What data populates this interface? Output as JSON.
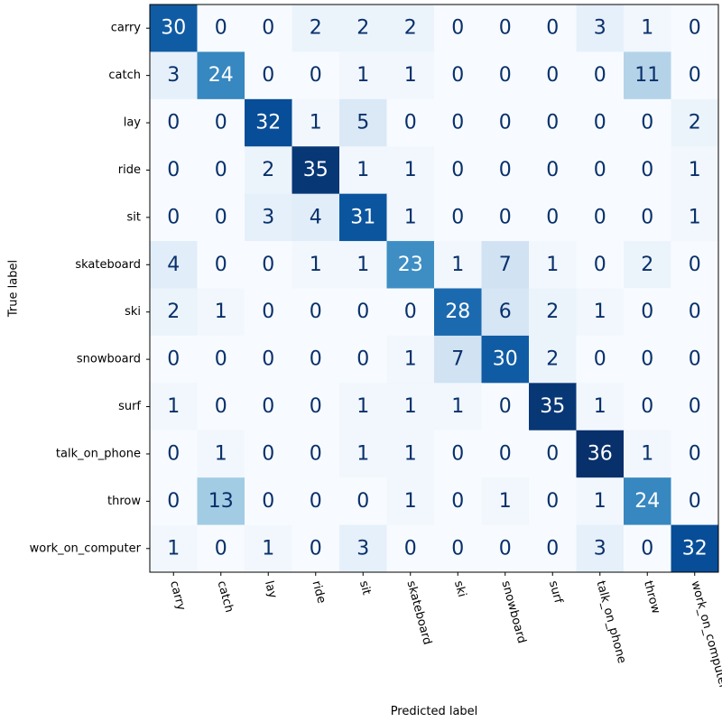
{
  "chart_data": {
    "type": "heatmap",
    "title": "",
    "xlabel": "Predicted label",
    "ylabel": "True label",
    "x_categories": [
      "carry",
      "catch",
      "lay",
      "ride",
      "sit",
      "skateboard",
      "ski",
      "snowboard",
      "surf",
      "talk_on_phone",
      "throw",
      "work_on_computer"
    ],
    "y_categories": [
      "carry",
      "catch",
      "lay",
      "ride",
      "sit",
      "skateboard",
      "ski",
      "snowboard",
      "surf",
      "talk_on_phone",
      "throw",
      "work_on_computer"
    ],
    "values": [
      [
        30,
        0,
        0,
        2,
        2,
        2,
        0,
        0,
        0,
        3,
        1,
        0
      ],
      [
        3,
        24,
        0,
        0,
        1,
        1,
        0,
        0,
        0,
        0,
        11,
        0
      ],
      [
        0,
        0,
        32,
        1,
        5,
        0,
        0,
        0,
        0,
        0,
        0,
        2
      ],
      [
        0,
        0,
        2,
        35,
        1,
        1,
        0,
        0,
        0,
        0,
        0,
        1
      ],
      [
        0,
        0,
        3,
        4,
        31,
        1,
        0,
        0,
        0,
        0,
        0,
        1
      ],
      [
        4,
        0,
        0,
        1,
        1,
        23,
        1,
        7,
        1,
        0,
        2,
        0
      ],
      [
        2,
        1,
        0,
        0,
        0,
        0,
        28,
        6,
        2,
        1,
        0,
        0
      ],
      [
        0,
        0,
        0,
        0,
        0,
        1,
        7,
        30,
        2,
        0,
        0,
        0
      ],
      [
        1,
        0,
        0,
        0,
        1,
        1,
        1,
        0,
        35,
        1,
        0,
        0
      ],
      [
        0,
        1,
        0,
        0,
        1,
        1,
        0,
        0,
        0,
        36,
        1,
        0
      ],
      [
        0,
        13,
        0,
        0,
        0,
        1,
        0,
        1,
        0,
        1,
        24,
        0
      ],
      [
        1,
        0,
        1,
        0,
        3,
        0,
        0,
        0,
        0,
        3,
        0,
        32
      ]
    ],
    "colormap": "Blues",
    "value_range": [
      0,
      36
    ],
    "text_color_dark": "#08306b",
    "text_color_light": "#ffffff",
    "grid": false,
    "legend": "none"
  }
}
